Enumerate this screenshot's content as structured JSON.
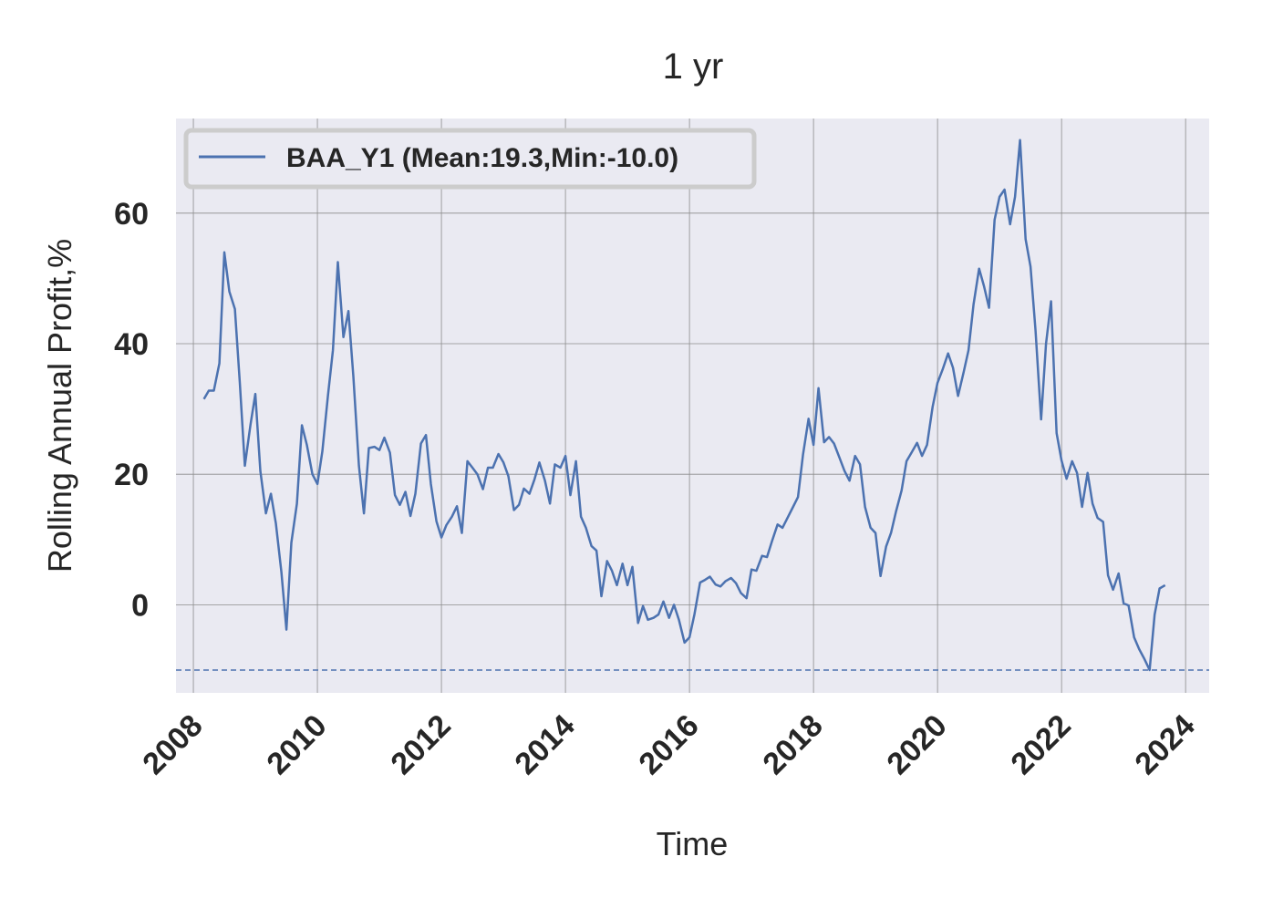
{
  "chart_data": {
    "type": "line",
    "title": "1 yr",
    "xlabel": "Time",
    "ylabel": "Rolling Annual Profit,%",
    "xlim": [
      2007.72,
      2024.38
    ],
    "ylim": [
      -13.5,
      74.5
    ],
    "xticks": [
      2008,
      2010,
      2012,
      2014,
      2016,
      2018,
      2020,
      2022,
      2024
    ],
    "xtick_labels": [
      "2008",
      "2010",
      "2012",
      "2014",
      "2016",
      "2018",
      "2020",
      "2022",
      "2024"
    ],
    "yticks": [
      0,
      20,
      40,
      60
    ],
    "ytick_labels": [
      "0",
      "20",
      "40",
      "60"
    ],
    "grid": true,
    "legend_position": "top-left",
    "series": [
      {
        "name": "BAA_Y1 (Mean:19.3,Min:-10.0)",
        "color": "#4c72b0",
        "x": [
          2008.17,
          2008.25,
          2008.33,
          2008.42,
          2008.5,
          2008.58,
          2008.67,
          2008.75,
          2008.83,
          2008.92,
          2009.0,
          2009.08,
          2009.17,
          2009.25,
          2009.33,
          2009.42,
          2009.5,
          2009.58,
          2009.67,
          2009.75,
          2009.83,
          2009.92,
          2010.0,
          2010.08,
          2010.17,
          2010.25,
          2010.33,
          2010.42,
          2010.5,
          2010.58,
          2010.67,
          2010.75,
          2010.83,
          2010.92,
          2011.0,
          2011.08,
          2011.17,
          2011.25,
          2011.33,
          2011.42,
          2011.5,
          2011.58,
          2011.67,
          2011.75,
          2011.83,
          2011.92,
          2012.0,
          2012.08,
          2012.17,
          2012.25,
          2012.33,
          2012.42,
          2012.5,
          2012.58,
          2012.67,
          2012.75,
          2012.83,
          2012.92,
          2013.0,
          2013.08,
          2013.17,
          2013.25,
          2013.33,
          2013.42,
          2013.5,
          2013.58,
          2013.67,
          2013.75,
          2013.83,
          2013.92,
          2014.0,
          2014.08,
          2014.17,
          2014.25,
          2014.33,
          2014.42,
          2014.5,
          2014.58,
          2014.67,
          2014.75,
          2014.83,
          2014.92,
          2015.0,
          2015.08,
          2015.17,
          2015.25,
          2015.33,
          2015.42,
          2015.5,
          2015.58,
          2015.67,
          2015.75,
          2015.83,
          2015.92,
          2016.0,
          2016.08,
          2016.17,
          2016.25,
          2016.33,
          2016.42,
          2016.5,
          2016.58,
          2016.67,
          2016.75,
          2016.83,
          2016.92,
          2017.0,
          2017.08,
          2017.17,
          2017.25,
          2017.33,
          2017.42,
          2017.5,
          2017.58,
          2017.67,
          2017.75,
          2017.83,
          2017.92,
          2018.0,
          2018.08,
          2018.17,
          2018.25,
          2018.33,
          2018.42,
          2018.5,
          2018.58,
          2018.67,
          2018.75,
          2018.83,
          2018.92,
          2019.0,
          2019.08,
          2019.17,
          2019.25,
          2019.33,
          2019.42,
          2019.5,
          2019.58,
          2019.67,
          2019.75,
          2019.83,
          2019.92,
          2020.0,
          2020.08,
          2020.17,
          2020.25,
          2020.33,
          2020.42,
          2020.5,
          2020.58,
          2020.67,
          2020.75,
          2020.83,
          2020.92,
          2021.0,
          2021.08,
          2021.17,
          2021.25,
          2021.33,
          2021.42,
          2021.5,
          2021.58,
          2021.67,
          2021.75,
          2021.83,
          2021.92,
          2022.0,
          2022.08,
          2022.17,
          2022.25,
          2022.33,
          2022.42,
          2022.5,
          2022.58,
          2022.67,
          2022.75,
          2022.83,
          2022.92,
          2023.0,
          2023.08,
          2023.17,
          2023.25,
          2023.33,
          2023.42,
          2023.5,
          2023.58,
          2023.67
        ],
        "y": [
          31.5,
          32.8,
          32.8,
          37.0,
          54.0,
          48.0,
          45.3,
          34.0,
          21.3,
          27.5,
          32.3,
          20.5,
          14.0,
          17.0,
          12.5,
          5.0,
          -3.8,
          9.5,
          15.5,
          27.5,
          24.5,
          20.0,
          18.5,
          23.5,
          32.0,
          39.0,
          52.5,
          41.0,
          45.0,
          35.0,
          21.3,
          14.0,
          24.0,
          24.2,
          23.7,
          25.6,
          23.3,
          16.8,
          15.3,
          17.3,
          13.6,
          17.0,
          24.7,
          26.0,
          18.5,
          12.8,
          10.3,
          12.2,
          13.5,
          15.1,
          11.0,
          22.0,
          21.0,
          20.0,
          17.7,
          21.0,
          21.0,
          23.1,
          21.8,
          19.7,
          14.5,
          15.3,
          17.8,
          17.0,
          19.2,
          21.8,
          19.0,
          15.5,
          21.5,
          21.0,
          22.8,
          16.8,
          22.0,
          13.5,
          11.8,
          9.0,
          8.3,
          1.3,
          6.7,
          5.2,
          3.0,
          6.3,
          3.0,
          5.8,
          -2.8,
          -0.2,
          -2.3,
          -2.0,
          -1.5,
          0.5,
          -2.0,
          0.0,
          -2.3,
          -5.8,
          -5.0,
          -1.5,
          3.4,
          3.8,
          4.3,
          3.1,
          2.8,
          3.6,
          4.1,
          3.3,
          1.8,
          1.0,
          5.4,
          5.2,
          7.5,
          7.3,
          9.7,
          12.3,
          11.8,
          13.3,
          15.0,
          16.5,
          23.0,
          28.5,
          24.5,
          33.2,
          24.9,
          25.7,
          24.7,
          22.5,
          20.5,
          19.0,
          22.8,
          21.5,
          15.0,
          11.8,
          11.0,
          4.4,
          8.9,
          11.0,
          14.3,
          17.5,
          22.0,
          23.3,
          24.8,
          22.8,
          24.5,
          30.3,
          34.0,
          36.0,
          38.5,
          36.3,
          32.0,
          35.6,
          39.0,
          46.0,
          51.5,
          48.8,
          45.5,
          59.0,
          62.5,
          63.6,
          58.3,
          62.5,
          71.2,
          56.0,
          51.8,
          42.0,
          28.4,
          40.0,
          46.5,
          26.3,
          22.1,
          19.3,
          22.0,
          20.2,
          15.0,
          20.2,
          15.5,
          13.3,
          12.7,
          4.5,
          2.3,
          4.8,
          0.2,
          -0.1,
          -5.0,
          -6.8,
          -8.2,
          -10.0,
          -1.5,
          2.5,
          3.0
        ]
      }
    ],
    "reference_lines": [
      {
        "label": "Min",
        "y": -10.0,
        "style": "dashed",
        "color": "#4c72b0"
      }
    ]
  }
}
